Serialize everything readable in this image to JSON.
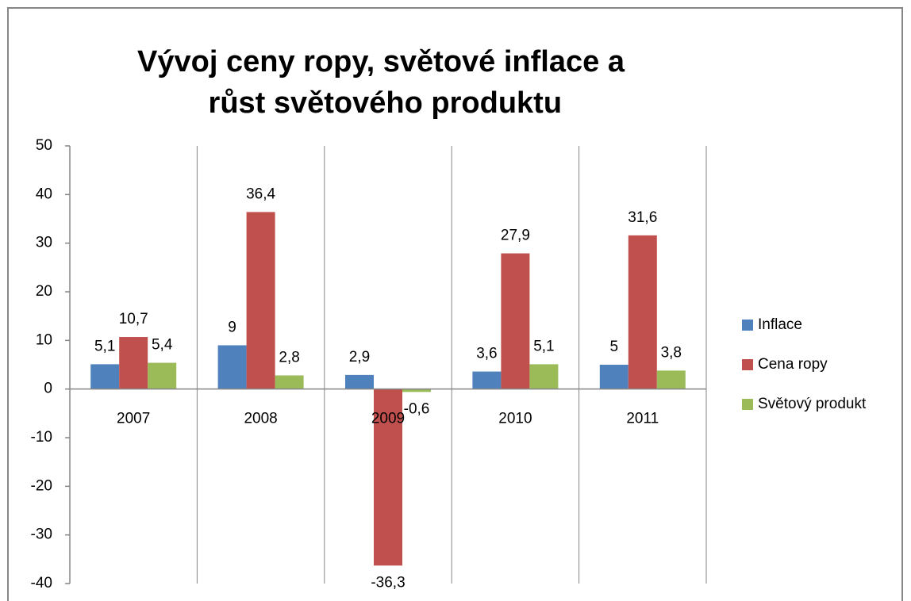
{
  "chart_data": {
    "type": "bar",
    "title": "Vývoj ceny ropy, světové inflace a růst světového produktu",
    "categories": [
      "2007",
      "2008",
      "2009",
      "2010",
      "2011"
    ],
    "series": [
      {
        "name": "Inflace",
        "color": "#4f81bd",
        "values": [
          5.1,
          9,
          2.9,
          3.6,
          5
        ],
        "value_labels": [
          "5,1",
          "9",
          "2,9",
          "3,6",
          "5"
        ]
      },
      {
        "name": "Cena ropy",
        "color": "#c0504d",
        "values": [
          10.7,
          36.4,
          -36.3,
          27.9,
          31.6
        ],
        "value_labels": [
          "10,7",
          "36,4",
          "-36,3",
          "27,9",
          "31,6"
        ]
      },
      {
        "name": "Světový produkt",
        "color": "#9bbb59",
        "values": [
          5.4,
          2.8,
          -0.6,
          5.1,
          3.8
        ],
        "value_labels": [
          "5,4",
          "2,8",
          "-0,6",
          "5,1",
          "3,8"
        ]
      }
    ],
    "ylim": [
      -40,
      50
    ],
    "yticks": [
      -40,
      -30,
      -20,
      -10,
      0,
      10,
      20,
      30,
      40,
      50
    ],
    "legend": "right"
  }
}
